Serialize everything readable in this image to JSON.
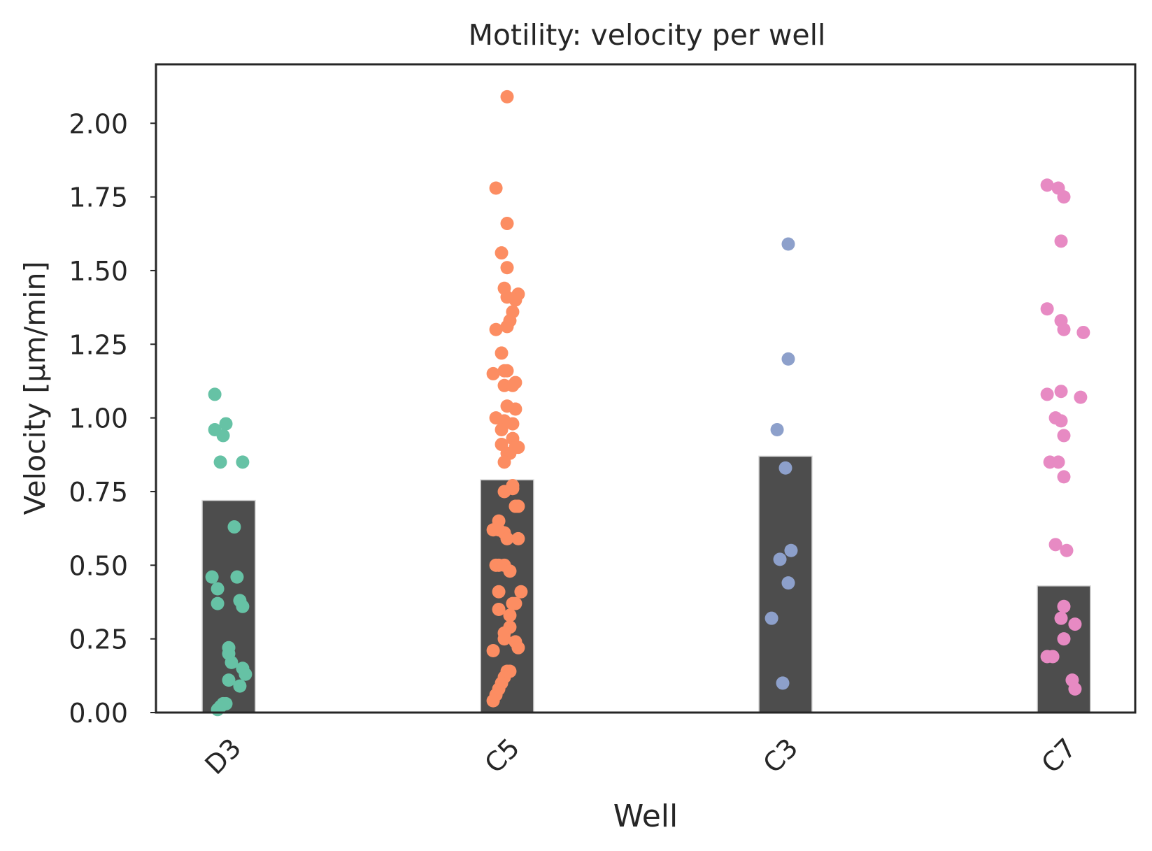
{
  "chart_data": {
    "type": "bar",
    "title": "Motility: velocity per well",
    "xlabel": "Well",
    "ylabel": "Velocity [µm/min]",
    "categories": [
      "D3",
      "C5",
      "C3",
      "C7"
    ],
    "ylim": [
      0,
      2.2
    ],
    "yticks": [
      0.0,
      0.25,
      0.5,
      0.75,
      1.0,
      1.25,
      1.5,
      1.75,
      2.0
    ],
    "ytick_labels": [
      "0.00",
      "0.25",
      "0.50",
      "0.75",
      "1.00",
      "1.25",
      "1.50",
      "1.75",
      "2.00"
    ],
    "grid": false,
    "bar_color": "#4d4d4d",
    "bars": [
      {
        "category": "D3",
        "value": 0.72
      },
      {
        "category": "C5",
        "value": 0.79
      },
      {
        "category": "C3",
        "value": 0.87
      },
      {
        "category": "C7",
        "value": 0.43
      }
    ],
    "points": [
      {
        "category": "D3",
        "color": "#66c2a5",
        "values": [
          {
            "offset": -0.05,
            "y": 1.08
          },
          {
            "offset": -0.05,
            "y": 0.96
          },
          {
            "offset": -0.01,
            "y": 0.98
          },
          {
            "offset": -0.02,
            "y": 0.94
          },
          {
            "offset": -0.03,
            "y": 0.85
          },
          {
            "offset": 0.05,
            "y": 0.85
          },
          {
            "offset": 0.02,
            "y": 0.63
          },
          {
            "offset": -0.06,
            "y": 0.46
          },
          {
            "offset": -0.04,
            "y": 0.42
          },
          {
            "offset": -0.04,
            "y": 0.37
          },
          {
            "offset": 0.03,
            "y": 0.46
          },
          {
            "offset": 0.04,
            "y": 0.38
          },
          {
            "offset": 0.05,
            "y": 0.36
          },
          {
            "offset": 0.0,
            "y": 0.22
          },
          {
            "offset": 0.0,
            "y": 0.2
          },
          {
            "offset": 0.01,
            "y": 0.17
          },
          {
            "offset": 0.05,
            "y": 0.15
          },
          {
            "offset": 0.06,
            "y": 0.13
          },
          {
            "offset": 0.0,
            "y": 0.11
          },
          {
            "offset": 0.04,
            "y": 0.09
          },
          {
            "offset": -0.02,
            "y": 0.03
          },
          {
            "offset": -0.01,
            "y": 0.03
          },
          {
            "offset": -0.03,
            "y": 0.02
          },
          {
            "offset": -0.04,
            "y": 0.01
          }
        ]
      },
      {
        "category": "C5",
        "color": "#fc8d62",
        "values": [
          {
            "offset": 0.0,
            "y": 2.09
          },
          {
            "offset": -0.04,
            "y": 1.78
          },
          {
            "offset": 0.0,
            "y": 1.66
          },
          {
            "offset": -0.02,
            "y": 1.56
          },
          {
            "offset": 0.0,
            "y": 1.51
          },
          {
            "offset": -0.01,
            "y": 1.44
          },
          {
            "offset": 0.0,
            "y": 1.41
          },
          {
            "offset": 0.04,
            "y": 1.42
          },
          {
            "offset": 0.03,
            "y": 1.4
          },
          {
            "offset": 0.02,
            "y": 1.36
          },
          {
            "offset": 0.01,
            "y": 1.33
          },
          {
            "offset": 0.0,
            "y": 1.31
          },
          {
            "offset": -0.04,
            "y": 1.3
          },
          {
            "offset": -0.02,
            "y": 1.22
          },
          {
            "offset": -0.01,
            "y": 1.16
          },
          {
            "offset": 0.0,
            "y": 1.16
          },
          {
            "offset": -0.05,
            "y": 1.15
          },
          {
            "offset": -0.01,
            "y": 1.11
          },
          {
            "offset": 0.03,
            "y": 1.12
          },
          {
            "offset": 0.02,
            "y": 1.11
          },
          {
            "offset": 0.0,
            "y": 1.04
          },
          {
            "offset": 0.03,
            "y": 1.03
          },
          {
            "offset": -0.04,
            "y": 1.0
          },
          {
            "offset": -0.01,
            "y": 0.99
          },
          {
            "offset": 0.02,
            "y": 0.98
          },
          {
            "offset": -0.02,
            "y": 0.96
          },
          {
            "offset": 0.02,
            "y": 0.93
          },
          {
            "offset": -0.02,
            "y": 0.91
          },
          {
            "offset": 0.04,
            "y": 0.9
          },
          {
            "offset": 0.03,
            "y": 0.9
          },
          {
            "offset": 0.0,
            "y": 0.88
          },
          {
            "offset": 0.01,
            "y": 0.88
          },
          {
            "offset": -0.01,
            "y": 0.85
          },
          {
            "offset": 0.02,
            "y": 0.77
          },
          {
            "offset": 0.02,
            "y": 0.76
          },
          {
            "offset": -0.01,
            "y": 0.75
          },
          {
            "offset": 0.04,
            "y": 0.7
          },
          {
            "offset": 0.03,
            "y": 0.7
          },
          {
            "offset": -0.03,
            "y": 0.65
          },
          {
            "offset": -0.05,
            "y": 0.62
          },
          {
            "offset": -0.03,
            "y": 0.62
          },
          {
            "offset": -0.01,
            "y": 0.61
          },
          {
            "offset": 0.0,
            "y": 0.59
          },
          {
            "offset": 0.04,
            "y": 0.59
          },
          {
            "offset": -0.04,
            "y": 0.5
          },
          {
            "offset": -0.03,
            "y": 0.5
          },
          {
            "offset": -0.01,
            "y": 0.5
          },
          {
            "offset": 0.01,
            "y": 0.48
          },
          {
            "offset": -0.03,
            "y": 0.41
          },
          {
            "offset": 0.05,
            "y": 0.41
          },
          {
            "offset": 0.02,
            "y": 0.37
          },
          {
            "offset": 0.03,
            "y": 0.37
          },
          {
            "offset": -0.03,
            "y": 0.35
          },
          {
            "offset": 0.01,
            "y": 0.33
          },
          {
            "offset": 0.01,
            "y": 0.29
          },
          {
            "offset": -0.01,
            "y": 0.27
          },
          {
            "offset": -0.01,
            "y": 0.25
          },
          {
            "offset": 0.03,
            "y": 0.24
          },
          {
            "offset": 0.04,
            "y": 0.22
          },
          {
            "offset": -0.05,
            "y": 0.21
          },
          {
            "offset": 0.01,
            "y": 0.14
          },
          {
            "offset": 0.0,
            "y": 0.14
          },
          {
            "offset": -0.01,
            "y": 0.12
          },
          {
            "offset": -0.02,
            "y": 0.1
          },
          {
            "offset": -0.03,
            "y": 0.08
          },
          {
            "offset": -0.04,
            "y": 0.06
          },
          {
            "offset": -0.05,
            "y": 0.04
          }
        ]
      },
      {
        "category": "C3",
        "color": "#8da0cb",
        "values": [
          {
            "offset": 0.01,
            "y": 1.59
          },
          {
            "offset": 0.01,
            "y": 1.2
          },
          {
            "offset": -0.03,
            "y": 0.96
          },
          {
            "offset": 0.0,
            "y": 0.83
          },
          {
            "offset": 0.02,
            "y": 0.55
          },
          {
            "offset": -0.02,
            "y": 0.52
          },
          {
            "offset": 0.01,
            "y": 0.44
          },
          {
            "offset": -0.05,
            "y": 0.32
          },
          {
            "offset": -0.01,
            "y": 0.1
          }
        ]
      },
      {
        "category": "C7",
        "color": "#e78ac3",
        "values": [
          {
            "offset": -0.06,
            "y": 1.79
          },
          {
            "offset": -0.02,
            "y": 1.78
          },
          {
            "offset": 0.0,
            "y": 1.75
          },
          {
            "offset": -0.01,
            "y": 1.6
          },
          {
            "offset": -0.06,
            "y": 1.37
          },
          {
            "offset": -0.01,
            "y": 1.33
          },
          {
            "offset": 0.0,
            "y": 1.3
          },
          {
            "offset": 0.07,
            "y": 1.29
          },
          {
            "offset": -0.06,
            "y": 1.08
          },
          {
            "offset": -0.01,
            "y": 1.09
          },
          {
            "offset": 0.06,
            "y": 1.07
          },
          {
            "offset": -0.03,
            "y": 1.0
          },
          {
            "offset": -0.01,
            "y": 0.99
          },
          {
            "offset": 0.0,
            "y": 0.94
          },
          {
            "offset": -0.05,
            "y": 0.85
          },
          {
            "offset": -0.02,
            "y": 0.85
          },
          {
            "offset": 0.0,
            "y": 0.8
          },
          {
            "offset": -0.03,
            "y": 0.57
          },
          {
            "offset": 0.01,
            "y": 0.55
          },
          {
            "offset": 0.0,
            "y": 0.36
          },
          {
            "offset": -0.01,
            "y": 0.32
          },
          {
            "offset": 0.04,
            "y": 0.3
          },
          {
            "offset": 0.0,
            "y": 0.25
          },
          {
            "offset": -0.06,
            "y": 0.19
          },
          {
            "offset": -0.04,
            "y": 0.19
          },
          {
            "offset": 0.03,
            "y": 0.11
          },
          {
            "offset": 0.04,
            "y": 0.08
          }
        ]
      }
    ]
  }
}
